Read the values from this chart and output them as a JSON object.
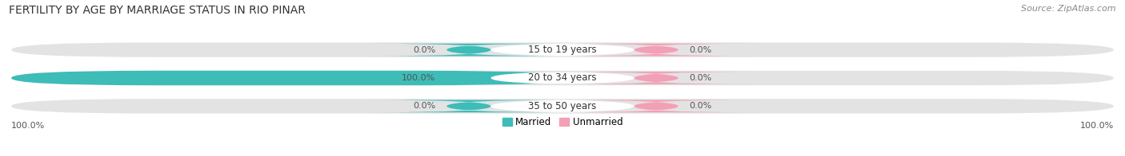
{
  "title": "FERTILITY BY AGE BY MARRIAGE STATUS IN RIO PINAR",
  "source": "Source: ZipAtlas.com",
  "categories": [
    "15 to 19 years",
    "20 to 34 years",
    "35 to 50 years"
  ],
  "married_values": [
    0.0,
    100.0,
    0.0
  ],
  "unmarried_values": [
    0.0,
    0.0,
    0.0
  ],
  "married_color": "#3DBCB8",
  "unmarried_color": "#F2A0B5",
  "bar_bg_color": "#E3E3E3",
  "bar_bg_color_light": "#EBEBEB",
  "label_married": "Married",
  "label_unmarried": "Unmarried",
  "title_fontsize": 10,
  "source_fontsize": 8,
  "label_fontsize": 8.5,
  "value_fontsize": 8,
  "tick_fontsize": 8,
  "axis_label_bottom_left": "100.0%",
  "axis_label_bottom_right": "100.0%",
  "fig_bg_color": "#FFFFFF",
  "fig_width": 14.06,
  "fig_height": 1.96,
  "dpi": 100
}
